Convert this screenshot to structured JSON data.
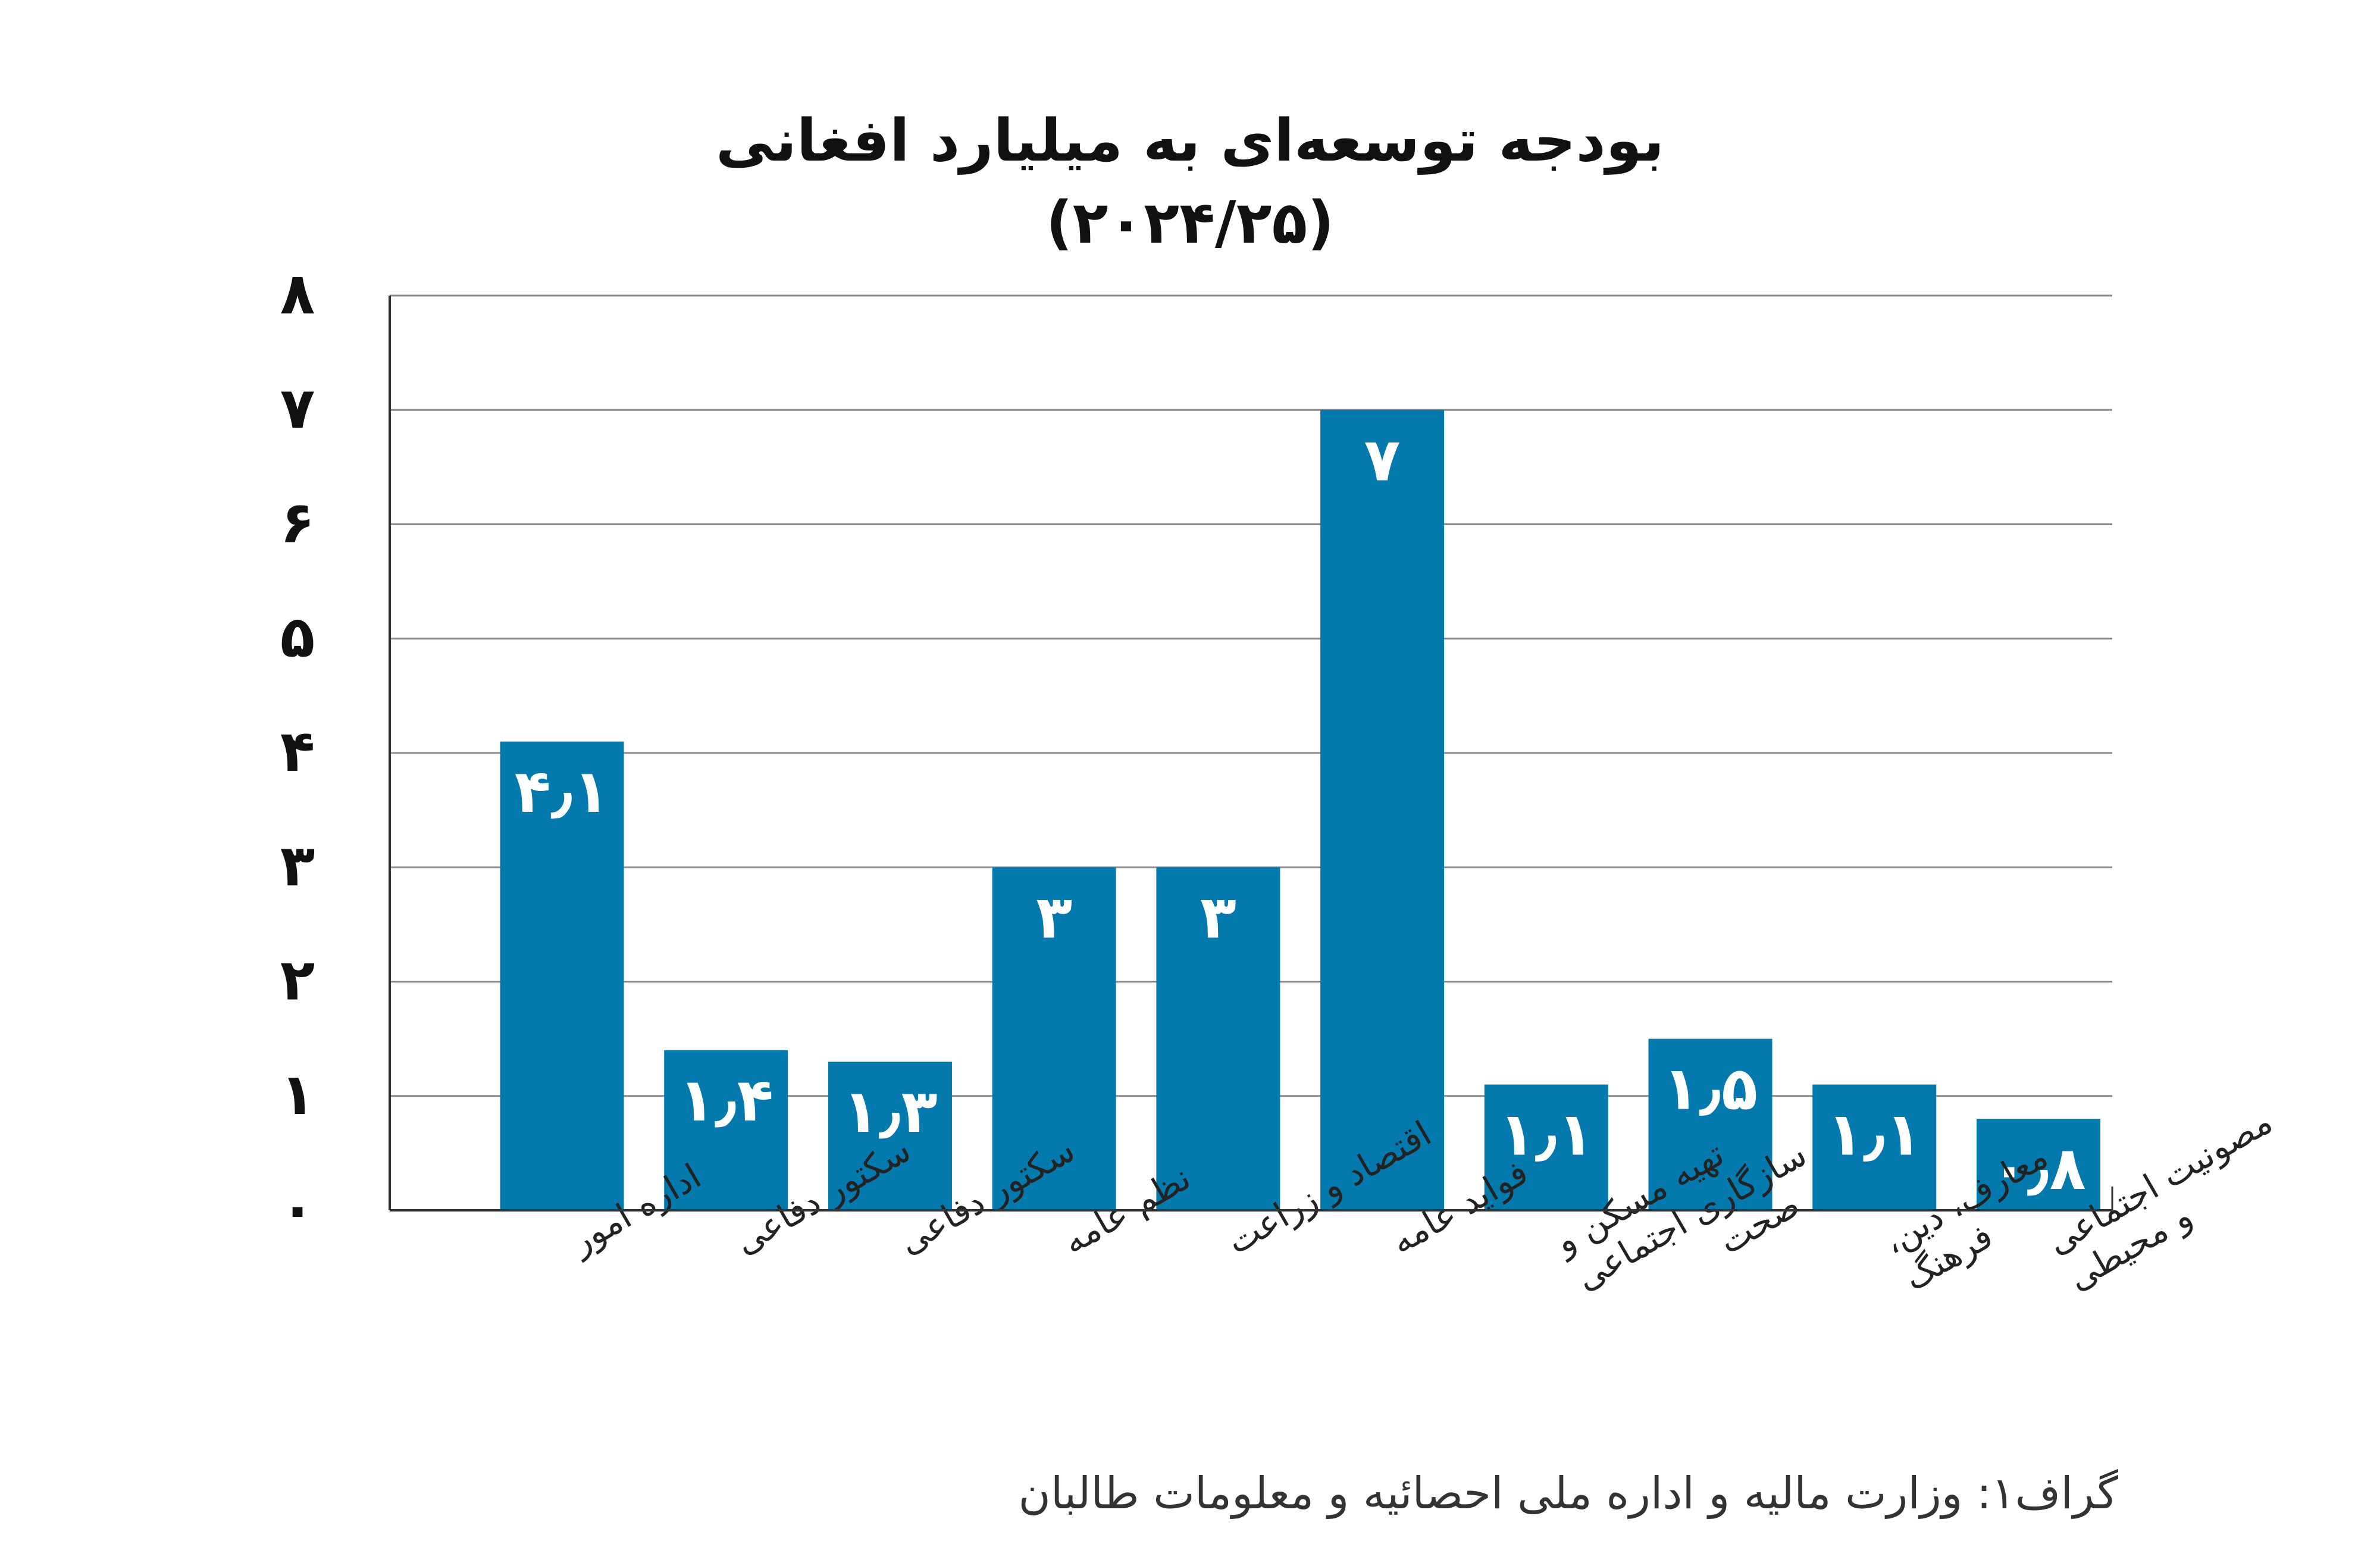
{
  "chart_data": {
    "type": "bar",
    "title": "بودجه توسعه‌ای به میلیارد افغانی",
    "subtitle": "(۲۰۲۴/۲۵)",
    "categories": [
      "اداره امور",
      "سکتور دفاعی",
      "سکتور دفاعی",
      "نظم عامه",
      "اقتصاد و زراعت",
      "فواید عامه",
      "تهیه مسکن و\nسازگاری اجتماعی",
      "صحت",
      "معارف، دین،\nفرهنگ",
      "مصونیت اجتماعی\nو محیطی"
    ],
    "values": [
      4.1,
      1.4,
      1.3,
      3,
      3,
      7,
      1.1,
      1.5,
      1.1,
      0.8
    ],
    "value_labels": [
      "۴٫۱",
      "۱٫۴",
      "۱٫۳",
      "۳",
      "۳",
      "۷",
      "۱٫۱",
      "۱٫۵",
      "۱٫۱",
      "۰٫۸"
    ],
    "y_ticks": [
      0,
      1,
      2,
      3,
      4,
      5,
      6,
      7,
      8
    ],
    "y_tick_labels": [
      "۰",
      "۱",
      "۲",
      "۳",
      "۴",
      "۵",
      "۶",
      "۷",
      "۸"
    ],
    "ylim": [
      0,
      8
    ],
    "xlabel": "",
    "ylabel": "",
    "grid": true,
    "legend": "none",
    "bar_color": "#0479ad"
  },
  "caption": "گراف۱: وزارت مالیه و اداره ملی احصائیه و معلومات طالبان"
}
